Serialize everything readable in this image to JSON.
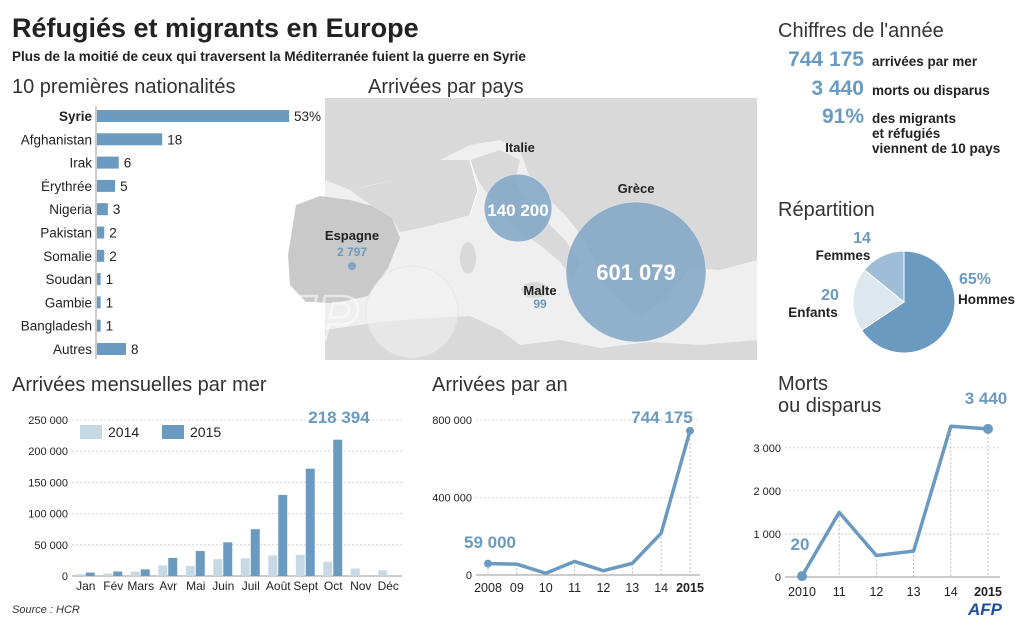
{
  "header": {
    "title": "Réfugiés et migrants en Europe",
    "subtitle": "Plus de la moitié de ceux qui traversent la Méditerranée fuient la guerre en Syrie"
  },
  "colors": {
    "accent": "#6b9ac0",
    "accent_light": "#c8d9e6",
    "accent_mid": "#9fbdd6",
    "map_land": "#d9d9d9",
    "map_sea": "#efefef",
    "bubble": "#7fa4c4"
  },
  "chart_data": [
    {
      "type": "bar",
      "title": "10 premières nationalités",
      "orientation": "horizontal",
      "categories": [
        "Syrie",
        "Afghanistan",
        "Irak",
        "Érythrée",
        "Nigeria",
        "Pakistan",
        "Somalie",
        "Soudan",
        "Gambie",
        "Bangladesh",
        "Autres"
      ],
      "values": [
        53,
        18,
        6,
        5,
        3,
        2,
        2,
        1,
        1,
        1,
        8
      ],
      "value_labels": [
        "53%",
        "18",
        "6",
        "5",
        "3",
        "2",
        "2",
        "1",
        "1",
        "1",
        "8"
      ],
      "highlight": "Syrie"
    },
    {
      "type": "bubble",
      "title": "Arrivées par pays",
      "points": [
        {
          "country": "Italie",
          "value": 140200,
          "label": "140 200"
        },
        {
          "country": "Grèce",
          "value": 601079,
          "label": "601 079"
        },
        {
          "country": "Espagne",
          "value": 2797,
          "label": "2 797"
        },
        {
          "country": "Malte",
          "value": 99,
          "label": "99"
        }
      ]
    },
    {
      "type": "pie",
      "title": "Répartition",
      "slices": [
        {
          "name": "Hommes",
          "value": 65,
          "label": "65%"
        },
        {
          "name": "Enfants",
          "value": 20,
          "label": "20"
        },
        {
          "name": "Femmes",
          "value": 14,
          "label": "14"
        }
      ]
    },
    {
      "type": "bar",
      "title": "Arrivées mensuelles par mer",
      "categories": [
        "Jan",
        "Fév",
        "Mars",
        "Avr",
        "Mai",
        "Juin",
        "Juil",
        "Août",
        "Sept",
        "Oct",
        "Nov",
        "Déc"
      ],
      "series": [
        {
          "name": "2014",
          "values": [
            3000,
            4000,
            7000,
            17000,
            16000,
            27000,
            28000,
            33000,
            34000,
            23000,
            12000,
            9000
          ]
        },
        {
          "name": "2015",
          "values": [
            5500,
            7300,
            10600,
            29000,
            40000,
            54000,
            75000,
            130000,
            172000,
            218394,
            null,
            null
          ]
        }
      ],
      "yticks": [
        "0",
        "50 000",
        "100 000",
        "150 000",
        "200 000",
        "250 000"
      ],
      "ytick_values": [
        0,
        50000,
        100000,
        150000,
        200000,
        250000
      ],
      "ylim": [
        0,
        250000
      ],
      "annotation": "218 394",
      "legend": "top-left"
    },
    {
      "type": "line",
      "title": "Arrivées par an",
      "x": [
        "2008",
        "09",
        "10",
        "11",
        "12",
        "13",
        "14",
        "2015"
      ],
      "values": [
        59000,
        56000,
        9000,
        70000,
        22000,
        60000,
        216000,
        744175
      ],
      "yticks": [
        "0",
        "400 000",
        "800 000"
      ],
      "ytick_values": [
        0,
        400000,
        800000
      ],
      "ylim": [
        0,
        800000
      ],
      "start_label": "59 000",
      "end_label": "744 175"
    },
    {
      "type": "line",
      "title": "Morts ou disparus",
      "title_lines": [
        "Morts",
        "ou disparus"
      ],
      "x": [
        "2010",
        "11",
        "12",
        "13",
        "14",
        "2015"
      ],
      "values": [
        20,
        1500,
        500,
        600,
        3500,
        3440
      ],
      "yticks": [
        "0",
        "1 000",
        "2 000",
        "3 000"
      ],
      "ytick_values": [
        0,
        1000,
        2000,
        3000
      ],
      "ylim": [
        0,
        3600
      ],
      "start_label": "20",
      "end_label": "3 440"
    }
  ],
  "figures": {
    "title": "Chiffres de l'année",
    "items": [
      {
        "value": "744 175",
        "text": [
          "arrivées par mer"
        ]
      },
      {
        "value": "3 440",
        "text": [
          "morts ou disparus"
        ]
      },
      {
        "value": "91%",
        "text": [
          "des migrants",
          "et réfugiés",
          "viennent de 10 pays"
        ]
      }
    ]
  },
  "footer": {
    "source": "Source : HCR",
    "logo": "AFP",
    "watermark": "AFP"
  }
}
